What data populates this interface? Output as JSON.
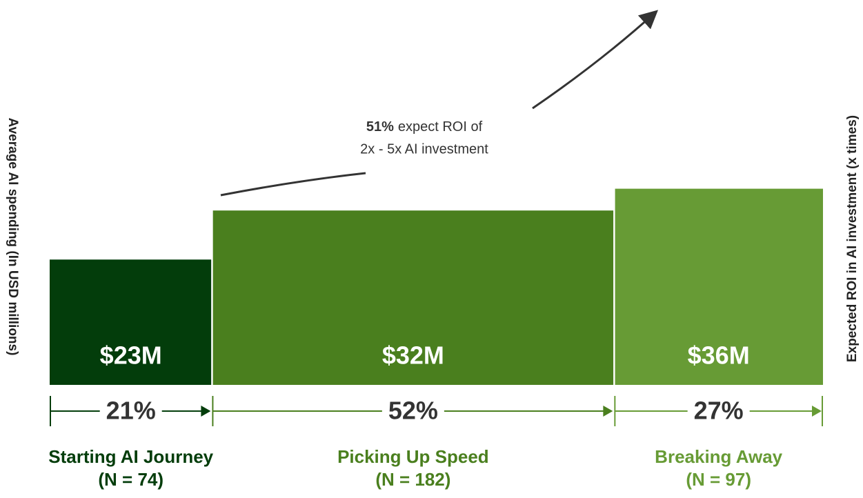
{
  "chart_data": {
    "type": "bar",
    "categories": [
      "Starting AI Journey",
      "Picking Up Speed",
      "Breaking Away"
    ],
    "n_labels": [
      "(N = 74)",
      "(N = 182)",
      "(N = 97)"
    ],
    "values": [
      23,
      32,
      36
    ],
    "value_labels": [
      "$23M",
      "$32M",
      "$36M"
    ],
    "widths": [
      21,
      52,
      27
    ],
    "width_labels": [
      "21%",
      "52%",
      "27%"
    ],
    "colors": [
      "#033d0b",
      "#4a7f1e",
      "#679b35"
    ],
    "ylabel": "Average AI spending (In USD millions)",
    "y2label": "Expected ROI in AI investment (x times)",
    "annotation": {
      "highlight": "51%",
      "text": "expect ROI of",
      "line2": "2x - 5x AI investment"
    }
  }
}
